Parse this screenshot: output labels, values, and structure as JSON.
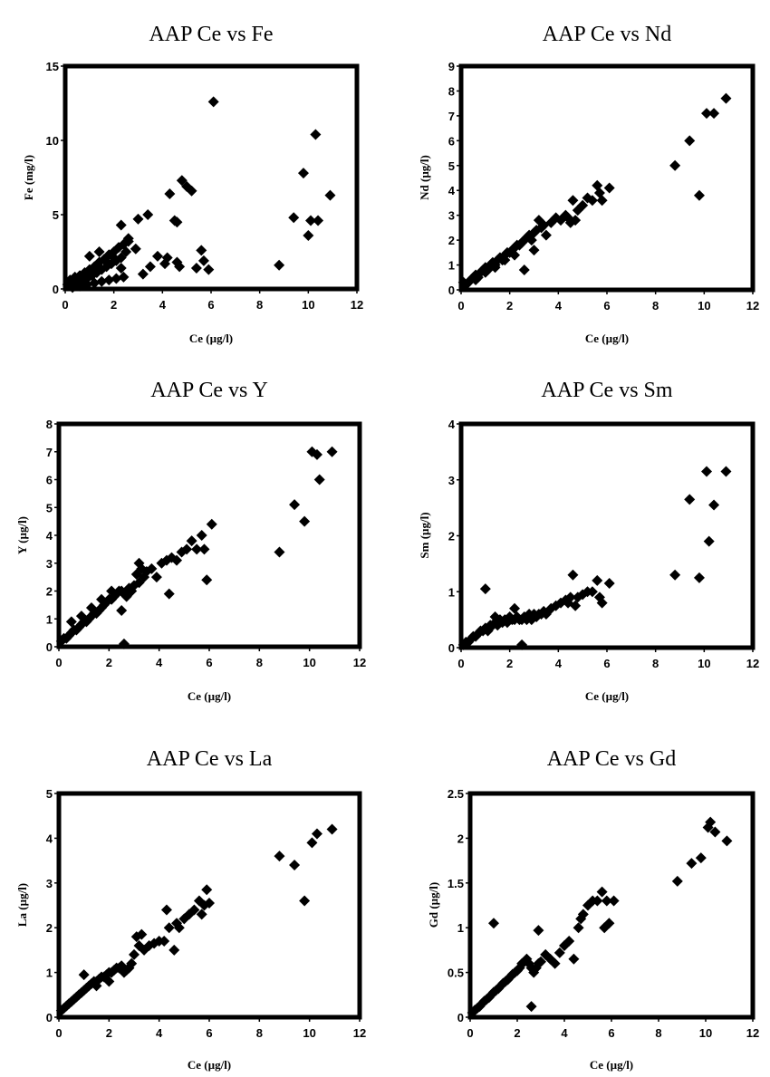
{
  "chart_data": [
    {
      "type": "scatter",
      "title": "AAP Ce vs Fe",
      "xlabel": "Ce (µg/l)",
      "ylabel": "Fe (mg/l)",
      "xlim": [
        0,
        12
      ],
      "ylim": [
        0,
        15
      ],
      "xticks": [
        0,
        2,
        4,
        6,
        8,
        10,
        12
      ],
      "yticks": [
        0,
        5,
        10,
        15
      ],
      "grid": false,
      "x": [
        0.1,
        0.2,
        0.3,
        0.4,
        0.5,
        0.6,
        0.7,
        0.8,
        0.9,
        1.0,
        1.1,
        1.2,
        1.3,
        1.4,
        1.5,
        1.6,
        1.7,
        1.8,
        1.9,
        2.0,
        2.1,
        2.2,
        2.3,
        2.4,
        2.5,
        0.3,
        0.6,
        0.9,
        1.2,
        1.5,
        1.8,
        2.1,
        2.4,
        1.0,
        1.4,
        1.7,
        2.0,
        2.3,
        2.6,
        2.9,
        3.2,
        3.5,
        3.8,
        4.1,
        4.3,
        4.5,
        4.6,
        4.8,
        5.0,
        5.2,
        5.4,
        5.6,
        5.7,
        5.9,
        6.1,
        8.8,
        9.4,
        9.8,
        10.0,
        10.1,
        10.3,
        10.4,
        10.9,
        2.3,
        2.6,
        3.0,
        3.4,
        4.2,
        4.6,
        4.7
      ],
      "y": [
        0.3,
        0.6,
        0.2,
        0.8,
        0.4,
        0.9,
        0.5,
        1.1,
        0.7,
        1.3,
        0.9,
        1.5,
        1.1,
        1.8,
        1.3,
        2.0,
        1.5,
        2.3,
        1.7,
        2.5,
        1.9,
        2.8,
        2.1,
        3.0,
        2.5,
        0.1,
        0.2,
        0.3,
        0.4,
        0.5,
        0.6,
        0.7,
        0.8,
        2.2,
        2.5,
        1.8,
        2.1,
        1.4,
        3.2,
        2.7,
        1.0,
        1.5,
        2.2,
        1.7,
        6.4,
        4.6,
        4.5,
        7.3,
        6.9,
        6.6,
        1.4,
        2.6,
        1.9,
        1.3,
        12.6,
        1.6,
        4.8,
        7.8,
        3.6,
        4.6,
        10.4,
        4.6,
        6.3,
        4.3,
        3.4,
        4.7,
        5.0,
        2.1,
        1.8,
        1.5
      ]
    },
    {
      "type": "scatter",
      "title": "AAP Ce vs Nd",
      "xlabel": "Ce (µg/l)",
      "ylabel": "Nd (µg/l)",
      "xlim": [
        0,
        12
      ],
      "ylim": [
        0,
        9
      ],
      "xticks": [
        0,
        2,
        4,
        6,
        8,
        10,
        12
      ],
      "yticks": [
        0,
        1,
        2,
        3,
        4,
        5,
        6,
        7,
        8,
        9
      ],
      "grid": false,
      "x": [
        0.1,
        0.2,
        0.3,
        0.4,
        0.5,
        0.6,
        0.7,
        0.8,
        0.9,
        1.0,
        1.1,
        1.2,
        1.3,
        1.4,
        1.5,
        1.6,
        1.7,
        1.8,
        1.9,
        2.0,
        2.1,
        2.2,
        2.3,
        2.4,
        2.5,
        2.6,
        2.7,
        2.8,
        2.9,
        3.0,
        3.1,
        3.2,
        3.3,
        3.4,
        3.5,
        3.7,
        3.9,
        4.1,
        4.3,
        4.4,
        4.5,
        4.6,
        4.7,
        4.8,
        5.0,
        5.2,
        5.4,
        5.6,
        5.7,
        5.8,
        6.1,
        0.6,
        1.0,
        1.4,
        1.8,
        2.2,
        2.6,
        3.0,
        8.8,
        9.4,
        9.8,
        10.1,
        10.4,
        10.9
      ],
      "y": [
        0.3,
        0.2,
        0.3,
        0.4,
        0.5,
        0.6,
        0.5,
        0.7,
        0.8,
        0.9,
        0.8,
        1.0,
        1.1,
        1.0,
        1.2,
        1.3,
        1.2,
        1.4,
        1.5,
        1.5,
        1.6,
        1.7,
        1.8,
        1.8,
        1.9,
        2.0,
        2.1,
        2.2,
        2.0,
        2.3,
        2.4,
        2.8,
        2.5,
        2.6,
        2.2,
        2.7,
        2.9,
        2.8,
        3.0,
        2.9,
        2.7,
        3.6,
        2.8,
        3.2,
        3.4,
        3.7,
        3.6,
        4.2,
        3.9,
        3.6,
        4.1,
        0.4,
        0.7,
        0.9,
        1.2,
        1.4,
        0.8,
        1.6,
        5.0,
        6.0,
        3.8,
        7.1,
        7.1,
        7.7
      ]
    },
    {
      "type": "scatter",
      "title": "AAP Ce vs Y",
      "xlabel": "Ce (µg/l)",
      "ylabel": "Y (µg/l)",
      "xlim": [
        0,
        12
      ],
      "ylim": [
        0,
        8
      ],
      "xticks": [
        0,
        2,
        4,
        6,
        8,
        10,
        12
      ],
      "yticks": [
        0,
        1,
        2,
        3,
        4,
        5,
        6,
        7,
        8
      ],
      "grid": false,
      "x": [
        0.1,
        0.2,
        0.3,
        0.4,
        0.5,
        0.6,
        0.7,
        0.8,
        0.9,
        1.0,
        1.1,
        1.2,
        1.3,
        1.4,
        1.5,
        1.6,
        1.7,
        1.8,
        1.9,
        2.0,
        2.1,
        2.2,
        2.3,
        2.4,
        2.5,
        2.6,
        2.7,
        2.8,
        2.9,
        3.0,
        3.1,
        3.2,
        3.3,
        3.4,
        3.5,
        3.7,
        3.9,
        4.1,
        4.3,
        4.5,
        4.7,
        4.9,
        5.1,
        5.3,
        5.5,
        5.7,
        5.9,
        6.1,
        0.5,
        0.9,
        1.3,
        1.7,
        2.1,
        2.5,
        2.6,
        3.2,
        4.4,
        5.8,
        8.8,
        9.4,
        9.8,
        10.1,
        10.3,
        10.4,
        10.9
      ],
      "y": [
        0.2,
        0.3,
        0.3,
        0.4,
        0.5,
        0.6,
        0.6,
        0.7,
        0.8,
        0.9,
        0.9,
        1.0,
        1.1,
        1.2,
        1.2,
        1.3,
        1.4,
        1.5,
        1.6,
        1.7,
        1.7,
        1.8,
        1.9,
        2.0,
        2.0,
        1.9,
        1.8,
        2.1,
        2.0,
        2.2,
        2.6,
        2.3,
        2.8,
        2.5,
        2.7,
        2.8,
        2.5,
        3.0,
        3.1,
        3.2,
        3.1,
        3.4,
        3.5,
        3.8,
        3.5,
        4.0,
        2.4,
        4.4,
        0.9,
        1.1,
        1.4,
        1.7,
        2.0,
        1.3,
        0.1,
        3.0,
        1.9,
        3.5,
        3.4,
        5.1,
        4.5,
        7.0,
        6.9,
        6.0,
        7.0
      ]
    },
    {
      "type": "scatter",
      "title": "AAP Ce vs Sm",
      "xlabel": "Ce (µg/l)",
      "ylabel": "Sm (µg/l)",
      "xlim": [
        0,
        12
      ],
      "ylim": [
        0,
        4
      ],
      "xticks": [
        0,
        2,
        4,
        6,
        8,
        10,
        12
      ],
      "yticks": [
        0,
        1,
        2,
        3,
        4
      ],
      "grid": false,
      "x": [
        0.1,
        0.2,
        0.3,
        0.4,
        0.5,
        0.6,
        0.7,
        0.8,
        0.9,
        1.0,
        1.1,
        1.2,
        1.3,
        1.4,
        1.5,
        1.6,
        1.7,
        1.8,
        1.9,
        2.0,
        2.1,
        2.2,
        2.3,
        2.4,
        2.5,
        2.6,
        2.7,
        2.8,
        2.9,
        3.0,
        3.1,
        3.2,
        3.3,
        3.4,
        3.5,
        3.7,
        3.9,
        4.1,
        4.3,
        4.4,
        4.5,
        4.6,
        4.7,
        4.8,
        5.0,
        5.2,
        5.4,
        5.6,
        5.7,
        5.8,
        6.1,
        1.0,
        1.4,
        2.2,
        2.5,
        8.8,
        9.4,
        9.8,
        10.1,
        10.2,
        10.4,
        10.9
      ],
      "y": [
        0.05,
        0.1,
        0.1,
        0.15,
        0.2,
        0.2,
        0.25,
        0.3,
        0.3,
        0.35,
        0.3,
        0.4,
        0.4,
        0.45,
        0.4,
        0.5,
        0.45,
        0.5,
        0.45,
        0.55,
        0.5,
        0.5,
        0.55,
        0.5,
        0.5,
        0.55,
        0.5,
        0.6,
        0.5,
        0.6,
        0.55,
        0.6,
        0.6,
        0.65,
        0.6,
        0.7,
        0.75,
        0.8,
        0.85,
        0.8,
        0.9,
        1.3,
        0.75,
        0.9,
        0.95,
        1.0,
        1.0,
        1.2,
        0.9,
        0.8,
        1.15,
        1.05,
        0.55,
        0.7,
        0.05,
        1.3,
        2.65,
        1.25,
        3.15,
        1.9,
        2.55,
        3.15
      ]
    },
    {
      "type": "scatter",
      "title": "AAP Ce vs La",
      "xlabel": "Ce (µg/l)",
      "ylabel": "La (µg/l)",
      "xlim": [
        0,
        12
      ],
      "ylim": [
        0,
        5
      ],
      "xticks": [
        0,
        2,
        4,
        6,
        8,
        10,
        12
      ],
      "yticks": [
        0,
        1,
        2,
        3,
        4,
        5
      ],
      "grid": false,
      "x": [
        0.1,
        0.2,
        0.3,
        0.4,
        0.5,
        0.6,
        0.7,
        0.8,
        0.9,
        1.0,
        1.1,
        1.2,
        1.3,
        1.4,
        1.5,
        1.6,
        1.7,
        1.8,
        1.9,
        2.0,
        2.1,
        2.2,
        2.3,
        2.4,
        2.5,
        2.6,
        2.7,
        2.8,
        2.9,
        3.0,
        3.1,
        3.2,
        3.3,
        3.4,
        3.6,
        3.8,
        4.0,
        4.2,
        4.3,
        4.4,
        4.6,
        4.7,
        4.8,
        5.0,
        5.2,
        5.4,
        5.6,
        5.7,
        5.8,
        5.9,
        6.0,
        1.0,
        1.5,
        2.0,
        8.8,
        9.4,
        9.8,
        10.1,
        10.3,
        10.9
      ],
      "y": [
        0.15,
        0.2,
        0.25,
        0.3,
        0.35,
        0.4,
        0.45,
        0.5,
        0.55,
        0.6,
        0.65,
        0.7,
        0.75,
        0.8,
        0.8,
        0.85,
        0.9,
        0.9,
        0.95,
        1.0,
        1.0,
        1.05,
        1.1,
        1.1,
        1.15,
        1.0,
        1.05,
        1.1,
        1.2,
        1.4,
        1.8,
        1.6,
        1.85,
        1.5,
        1.6,
        1.65,
        1.7,
        1.7,
        2.4,
        2.0,
        1.5,
        2.1,
        2.0,
        2.2,
        2.3,
        2.4,
        2.6,
        2.3,
        2.5,
        2.85,
        2.55,
        0.95,
        0.7,
        0.8,
        3.6,
        3.4,
        2.6,
        3.9,
        4.1,
        4.2
      ]
    },
    {
      "type": "scatter",
      "title": "AAP Ce vs Gd",
      "xlabel": "Ce (µg/l)",
      "ylabel": "Gd (µg/l)",
      "xlim": [
        0,
        12
      ],
      "ylim": [
        0,
        2.5
      ],
      "xticks": [
        0,
        2,
        4,
        6,
        8,
        10,
        12
      ],
      "yticks": [
        0,
        0.5,
        1,
        1.5,
        2,
        2.5
      ],
      "grid": false,
      "x": [
        0.1,
        0.2,
        0.3,
        0.4,
        0.5,
        0.6,
        0.7,
        0.8,
        0.9,
        1.0,
        1.1,
        1.2,
        1.3,
        1.4,
        1.5,
        1.6,
        1.7,
        1.8,
        1.9,
        2.0,
        2.1,
        2.2,
        2.3,
        2.4,
        2.5,
        2.6,
        2.7,
        2.8,
        2.9,
        3.0,
        3.2,
        3.4,
        3.6,
        3.8,
        4.0,
        4.2,
        4.4,
        4.6,
        4.7,
        4.8,
        5.0,
        5.2,
        5.4,
        5.6,
        5.7,
        5.8,
        5.9,
        6.1,
        1.0,
        2.6,
        2.9,
        8.8,
        9.4,
        9.8,
        10.1,
        10.2,
        10.4,
        10.9
      ],
      "y": [
        0.05,
        0.08,
        0.1,
        0.12,
        0.15,
        0.18,
        0.2,
        0.22,
        0.25,
        0.28,
        0.3,
        0.32,
        0.35,
        0.38,
        0.4,
        0.42,
        0.45,
        0.48,
        0.5,
        0.52,
        0.55,
        0.6,
        0.62,
        0.65,
        0.6,
        0.55,
        0.5,
        0.55,
        0.6,
        0.62,
        0.7,
        0.65,
        0.6,
        0.72,
        0.8,
        0.85,
        0.65,
        1.0,
        1.1,
        1.15,
        1.25,
        1.3,
        1.3,
        1.4,
        1.0,
        1.3,
        1.05,
        1.3,
        1.05,
        0.12,
        0.97,
        1.52,
        1.72,
        1.78,
        2.12,
        2.18,
        2.07,
        1.97
      ]
    }
  ]
}
